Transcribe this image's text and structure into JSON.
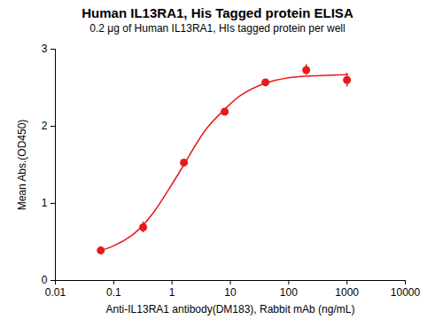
{
  "chart_data": {
    "type": "scatter",
    "title": "Human IL13RA1, His Tagged protein ELISA",
    "subtitle": "0.2 μg of Human IL13RA1, HIs tagged protein per well",
    "x_label": "Anti-IL13RA1 antibody(DM183), Rabbit mAb (ng/mL)",
    "y_label": "Mean Abs.(OD450)",
    "log": "x",
    "grid": false,
    "xlim": [
      0.01,
      10000
    ],
    "xticks": [
      0.01,
      0.1,
      1,
      10,
      100,
      1000,
      10000
    ],
    "ylim": [
      0,
      3
    ],
    "yticks": [
      0,
      1,
      2,
      3
    ],
    "series": [
      {
        "type": "scatter",
        "marker": "circle",
        "color": "#e8191c",
        "x": [
          0.06,
          0.32,
          1.6,
          8,
          40,
          200,
          1000
        ],
        "values": [
          0.39,
          0.69,
          1.53,
          2.19,
          2.57,
          2.73,
          2.6
        ],
        "errors": [
          0.01,
          0.07,
          0.02,
          0.02,
          0.01,
          0.07,
          0.09
        ]
      },
      {
        "type": "line",
        "line_style": "solid",
        "color": "#e8191c",
        "x": [
          0.06,
          0.1,
          0.2,
          0.32,
          0.5,
          1,
          1.6,
          2.5,
          4,
          8,
          15,
          40,
          100,
          200,
          1000
        ],
        "values": [
          0.39,
          0.45,
          0.58,
          0.72,
          0.9,
          1.25,
          1.5,
          1.75,
          1.98,
          2.22,
          2.4,
          2.56,
          2.63,
          2.65,
          2.67
        ]
      }
    ]
  }
}
